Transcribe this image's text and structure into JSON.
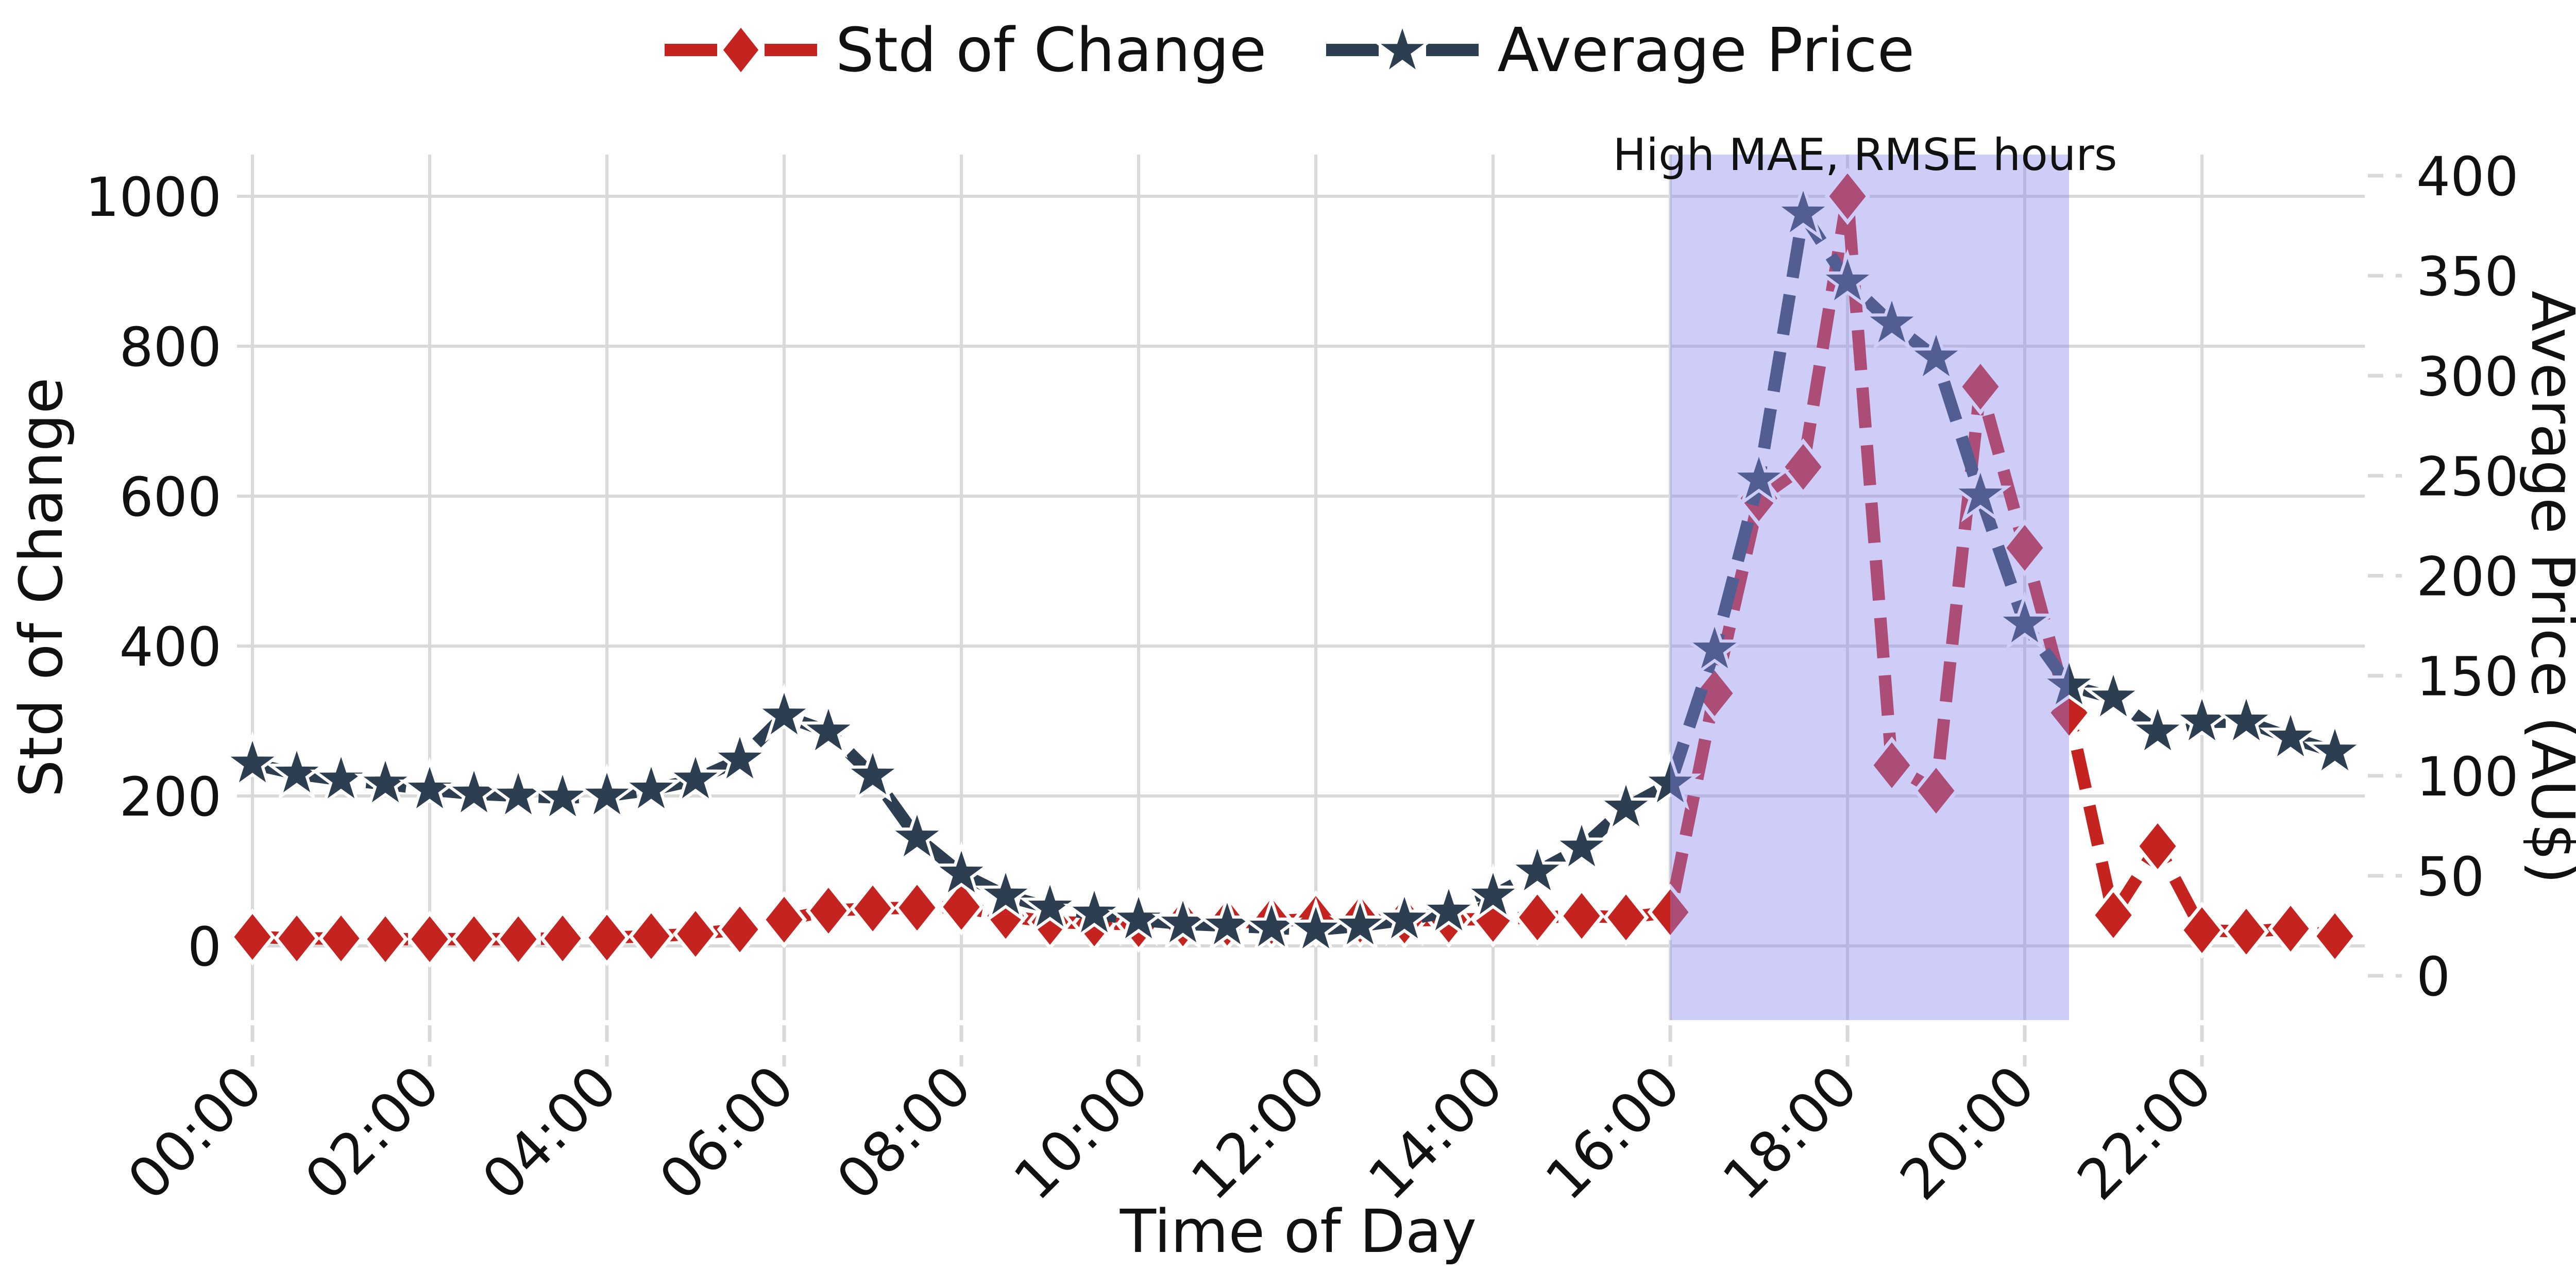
{
  "chart_data": {
    "type": "line",
    "title": "",
    "categories": [
      "00:00",
      "00:30",
      "01:00",
      "01:30",
      "02:00",
      "02:30",
      "03:00",
      "03:30",
      "04:00",
      "04:30",
      "05:00",
      "05:30",
      "06:00",
      "06:30",
      "07:00",
      "07:30",
      "08:00",
      "08:30",
      "09:00",
      "09:30",
      "10:00",
      "10:30",
      "11:00",
      "11:30",
      "12:00",
      "12:30",
      "13:00",
      "13:30",
      "14:00",
      "14:30",
      "15:00",
      "15:30",
      "16:00",
      "16:30",
      "17:00",
      "17:30",
      "18:00",
      "18:30",
      "19:00",
      "19:30",
      "20:00",
      "20:30",
      "21:00",
      "21:30",
      "22:00",
      "22:30",
      "23:00",
      "23:30"
    ],
    "x_tick_labels": [
      "00:00",
      "02:00",
      "04:00",
      "06:00",
      "08:00",
      "10:00",
      "12:00",
      "14:00",
      "16:00",
      "18:00",
      "20:00",
      "22:00"
    ],
    "series": [
      {
        "name": "Std of Change",
        "axis": "left",
        "color": "#c52320",
        "marker": "diamond",
        "linestyle": "dashed",
        "values": [
          12,
          10,
          10,
          9,
          9,
          9,
          9,
          10,
          11,
          13,
          16,
          22,
          35,
          47,
          50,
          51,
          52,
          40,
          32,
          30,
          29,
          30,
          31,
          33,
          36,
          35,
          34,
          35,
          36,
          38,
          40,
          38,
          45,
          337,
          597,
          639,
          1000,
          241,
          207,
          746,
          531,
          311,
          41,
          133,
          21,
          19,
          23,
          13
        ]
      },
      {
        "name": "Average Price",
        "axis": "right",
        "color": "#2c3e50",
        "marker": "star",
        "linestyle": "dashed",
        "values": [
          106,
          101,
          98,
          96,
          93,
          91,
          90,
          89,
          90,
          93,
          98,
          108,
          130,
          122,
          100,
          69,
          51,
          40,
          34,
          31,
          28,
          26,
          25,
          24,
          23,
          25,
          28,
          32,
          40,
          52,
          64,
          84,
          96,
          163,
          248,
          381,
          347,
          326,
          309,
          240,
          176,
          145,
          139,
          122,
          127,
          127,
          119,
          112
        ]
      }
    ],
    "left_axis": {
      "label": "Std of Change",
      "ticks": [
        0,
        200,
        400,
        600,
        800,
        1000
      ],
      "range": [
        -99,
        1062
      ]
    },
    "right_axis": {
      "label": "Average Price (AU$)",
      "ticks": [
        0,
        50,
        100,
        150,
        200,
        250,
        300,
        350,
        400
      ],
      "range": [
        -22,
        433
      ]
    },
    "x_axis": {
      "label": "Time of Day"
    },
    "shaded_region": {
      "from": "16:00",
      "to": "20:30",
      "label": "High MAE, RMSE hours",
      "color": "#8888ee",
      "opacity": 0.42
    },
    "grid": true,
    "grid_color": "#d9d9d9",
    "legend_position": "top-center",
    "background": "#ffffff"
  }
}
